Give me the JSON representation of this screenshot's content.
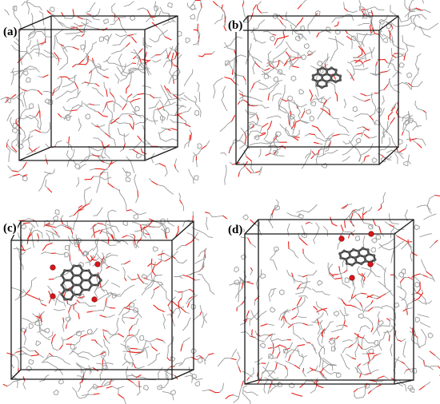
{
  "panels": [
    {
      "id": "a",
      "label": "(a)",
      "molecule": "none"
    },
    {
      "id": "b",
      "label": "(b)",
      "molecule": "pyrene-plain"
    },
    {
      "id": "c",
      "label": "(c)",
      "molecule": "coronene-oxidized"
    },
    {
      "id": "d",
      "label": "(d)",
      "molecule": "oxidized-cluster"
    }
  ],
  "colors": {
    "box_edge": "#1a1a1a",
    "carbon_stick": "#9a9a9a",
    "oxygen_stick": "#e8251d",
    "pah_atom": "#5a5a5a",
    "pah_oxygen": "#d8161a"
  }
}
